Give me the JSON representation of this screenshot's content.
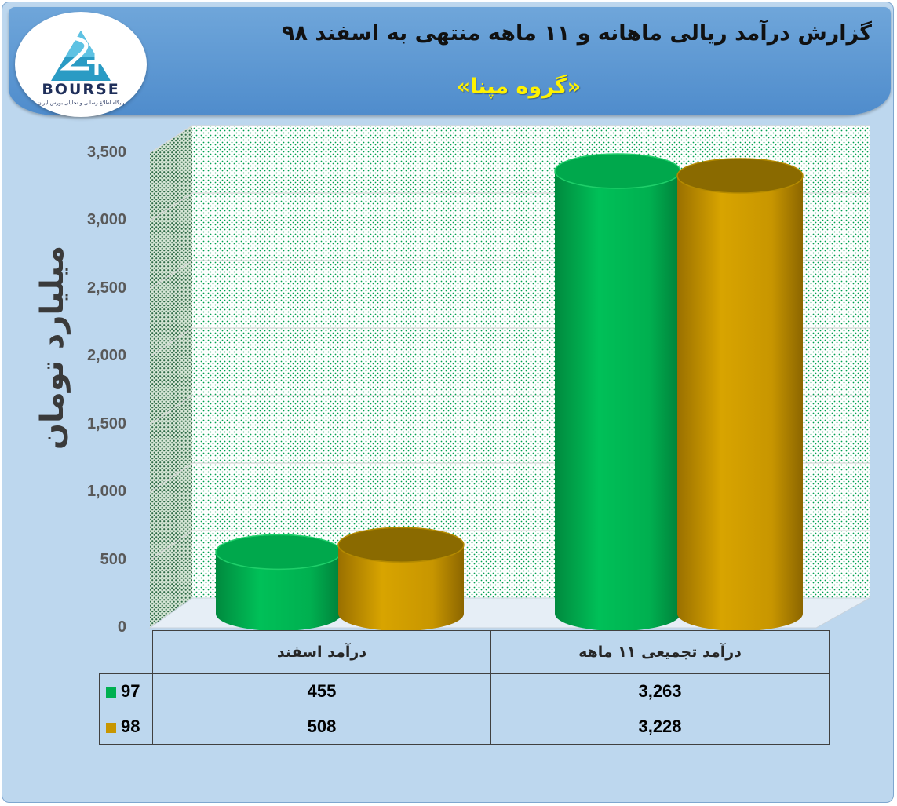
{
  "header": {
    "title": "گزارش درآمد ریالی ماهانه و ۱۱ ماهه منتهی به اسفند ۹۸",
    "subtitle": "«گروه مپنا»"
  },
  "logo": {
    "icon": "bourse-24-logo-icon",
    "word": "BOURSE",
    "tagline": "پایگاه اطلاع رسانی و تحلیلی بورس ایران"
  },
  "colors": {
    "series_97": "#00b050",
    "series_98": "#c89600",
    "background": "#bdd7ee",
    "banner": "#5b9bd5",
    "title_highlight": "#fff200"
  },
  "chart_data": {
    "type": "bar",
    "style": "3d-cylinder",
    "title": "گزارش درآمد ریالی ماهانه و ۱۱ ماهه منتهی به اسفند ۹۸",
    "subtitle": "«گروه مپنا»",
    "ylabel": "میلیارد تومان",
    "xlabel": "",
    "ylim": [
      0,
      3500
    ],
    "yticks": [
      "0",
      "500",
      "1,000",
      "1,500",
      "2,000",
      "2,500",
      "3,000",
      "3,500"
    ],
    "ytick_values": [
      0,
      500,
      1000,
      1500,
      2000,
      2500,
      3000,
      3500
    ],
    "grid": true,
    "categories": [
      "درآمد تجمیعی ۱۱ ماهه",
      "درآمد اسفند"
    ],
    "category_order": "right-to-left",
    "series": [
      {
        "name": "97",
        "values": [
          3263,
          455
        ],
        "labels": [
          "3,263",
          "455"
        ]
      },
      {
        "name": "98",
        "values": [
          3228,
          508
        ],
        "labels": [
          "3,228",
          "508"
        ]
      }
    ],
    "legend": "data-table"
  }
}
